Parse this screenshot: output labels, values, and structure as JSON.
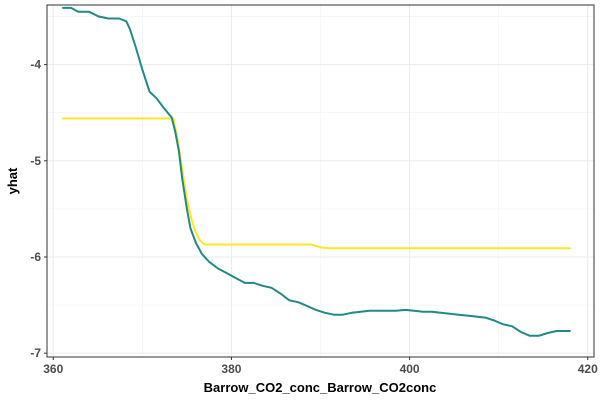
{
  "chart_data": {
    "type": "line",
    "title": "",
    "xlabel": "Barrow_CO2_conc_Barrow_CO2conc",
    "ylabel": "yhat",
    "xlim": [
      359.3,
      420.7
    ],
    "ylim": [
      -7.04,
      -3.38
    ],
    "xticks": [
      360,
      380,
      400,
      420
    ],
    "yticks": [
      -7,
      -6,
      -5,
      -4
    ],
    "xtick_labels": [
      "360",
      "380",
      "400",
      "420"
    ],
    "ytick_labels": [
      "-7",
      "-6",
      "-5",
      "-4"
    ],
    "grid": true,
    "legend": "none",
    "series": [
      {
        "color": "#1f8a88",
        "x": [
          361.1,
          362.0,
          362.8,
          364.0,
          365.1,
          366.2,
          367.4,
          368.2,
          368.6,
          369.2,
          370.0,
          370.8,
          371.6,
          372.4,
          373.3,
          373.7,
          374.1,
          374.5,
          375.0,
          375.4,
          376.0,
          376.7,
          377.5,
          378.5,
          379.5,
          380.5,
          381.5,
          382.5,
          383.5,
          384.5,
          385.5,
          386.5,
          387.5,
          388.5,
          389.5,
          390.5,
          391.5,
          392.5,
          393.5,
          394.5,
          395.5,
          396.5,
          397.5,
          398.5,
          399.5,
          400.5,
          401.5,
          402.5,
          403.5,
          404.5,
          405.5,
          406.5,
          407.5,
          408.5,
          409.5,
          410.5,
          411.5,
          412.5,
          413.5,
          414.5,
          415.5,
          416.5,
          417.5,
          418.0
        ],
        "y": [
          -3.41,
          -3.41,
          -3.45,
          -3.45,
          -3.5,
          -3.52,
          -3.52,
          -3.55,
          -3.63,
          -3.8,
          -4.05,
          -4.28,
          -4.35,
          -4.45,
          -4.55,
          -4.7,
          -4.9,
          -5.2,
          -5.5,
          -5.7,
          -5.85,
          -5.97,
          -6.05,
          -6.12,
          -6.17,
          -6.22,
          -6.27,
          -6.27,
          -6.3,
          -6.32,
          -6.38,
          -6.45,
          -6.47,
          -6.51,
          -6.55,
          -6.58,
          -6.6,
          -6.6,
          -6.58,
          -6.57,
          -6.56,
          -6.56,
          -6.56,
          -6.56,
          -6.55,
          -6.56,
          -6.57,
          -6.57,
          -6.58,
          -6.59,
          -6.6,
          -6.61,
          -6.62,
          -6.63,
          -6.66,
          -6.7,
          -6.72,
          -6.78,
          -6.82,
          -6.82,
          -6.79,
          -6.77,
          -6.77,
          -6.77
        ]
      },
      {
        "color": "#fde725",
        "x": [
          361.1,
          365.0,
          370.0,
          373.5,
          374.0,
          374.5,
          375.0,
          375.5,
          376.0,
          376.5,
          377.0,
          378.0,
          380.0,
          385.0,
          389.0,
          390.0,
          391.0,
          395.0,
          400.0,
          405.0,
          410.0,
          415.0,
          418.0
        ],
        "y": [
          -4.56,
          -4.56,
          -4.56,
          -4.56,
          -4.8,
          -5.1,
          -5.4,
          -5.6,
          -5.75,
          -5.83,
          -5.87,
          -5.87,
          -5.87,
          -5.87,
          -5.87,
          -5.9,
          -5.91,
          -5.91,
          -5.91,
          -5.91,
          -5.91,
          -5.91,
          -5.91
        ]
      }
    ]
  }
}
